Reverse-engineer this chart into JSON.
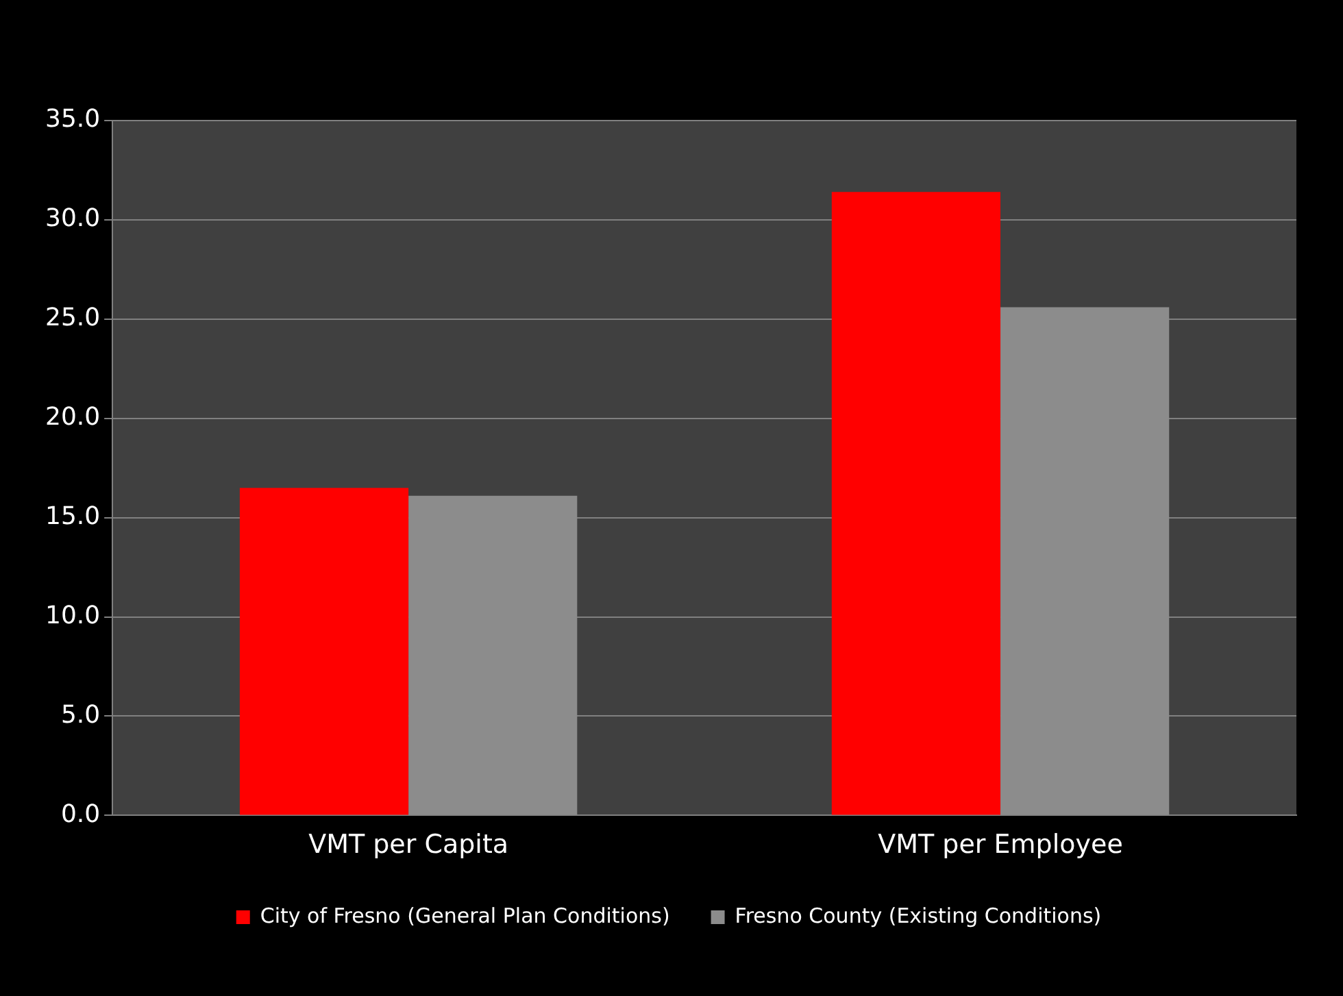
{
  "chart_data": {
    "type": "bar",
    "categories": [
      "VMT per Capita",
      "VMT per Employee"
    ],
    "series": [
      {
        "name": "City of Fresno (General Plan Conditions)",
        "color": "#ff0000",
        "values": [
          16.5,
          31.4
        ]
      },
      {
        "name": "Fresno County (Existing Conditions)",
        "color": "#8c8c8c",
        "values": [
          16.1,
          25.6
        ]
      }
    ],
    "ylim": [
      0,
      35
    ],
    "yticks": [
      {
        "value": 0,
        "label": "0.0"
      },
      {
        "value": 5,
        "label": "5.0"
      },
      {
        "value": 10,
        "label": "10.0"
      },
      {
        "value": 15,
        "label": "15.0"
      },
      {
        "value": 20,
        "label": "20.0"
      },
      {
        "value": 25,
        "label": "25.0"
      },
      {
        "value": 30,
        "label": "30.0"
      },
      {
        "value": 35,
        "label": "35.0"
      }
    ],
    "grid": "y",
    "legend": "bottom"
  }
}
